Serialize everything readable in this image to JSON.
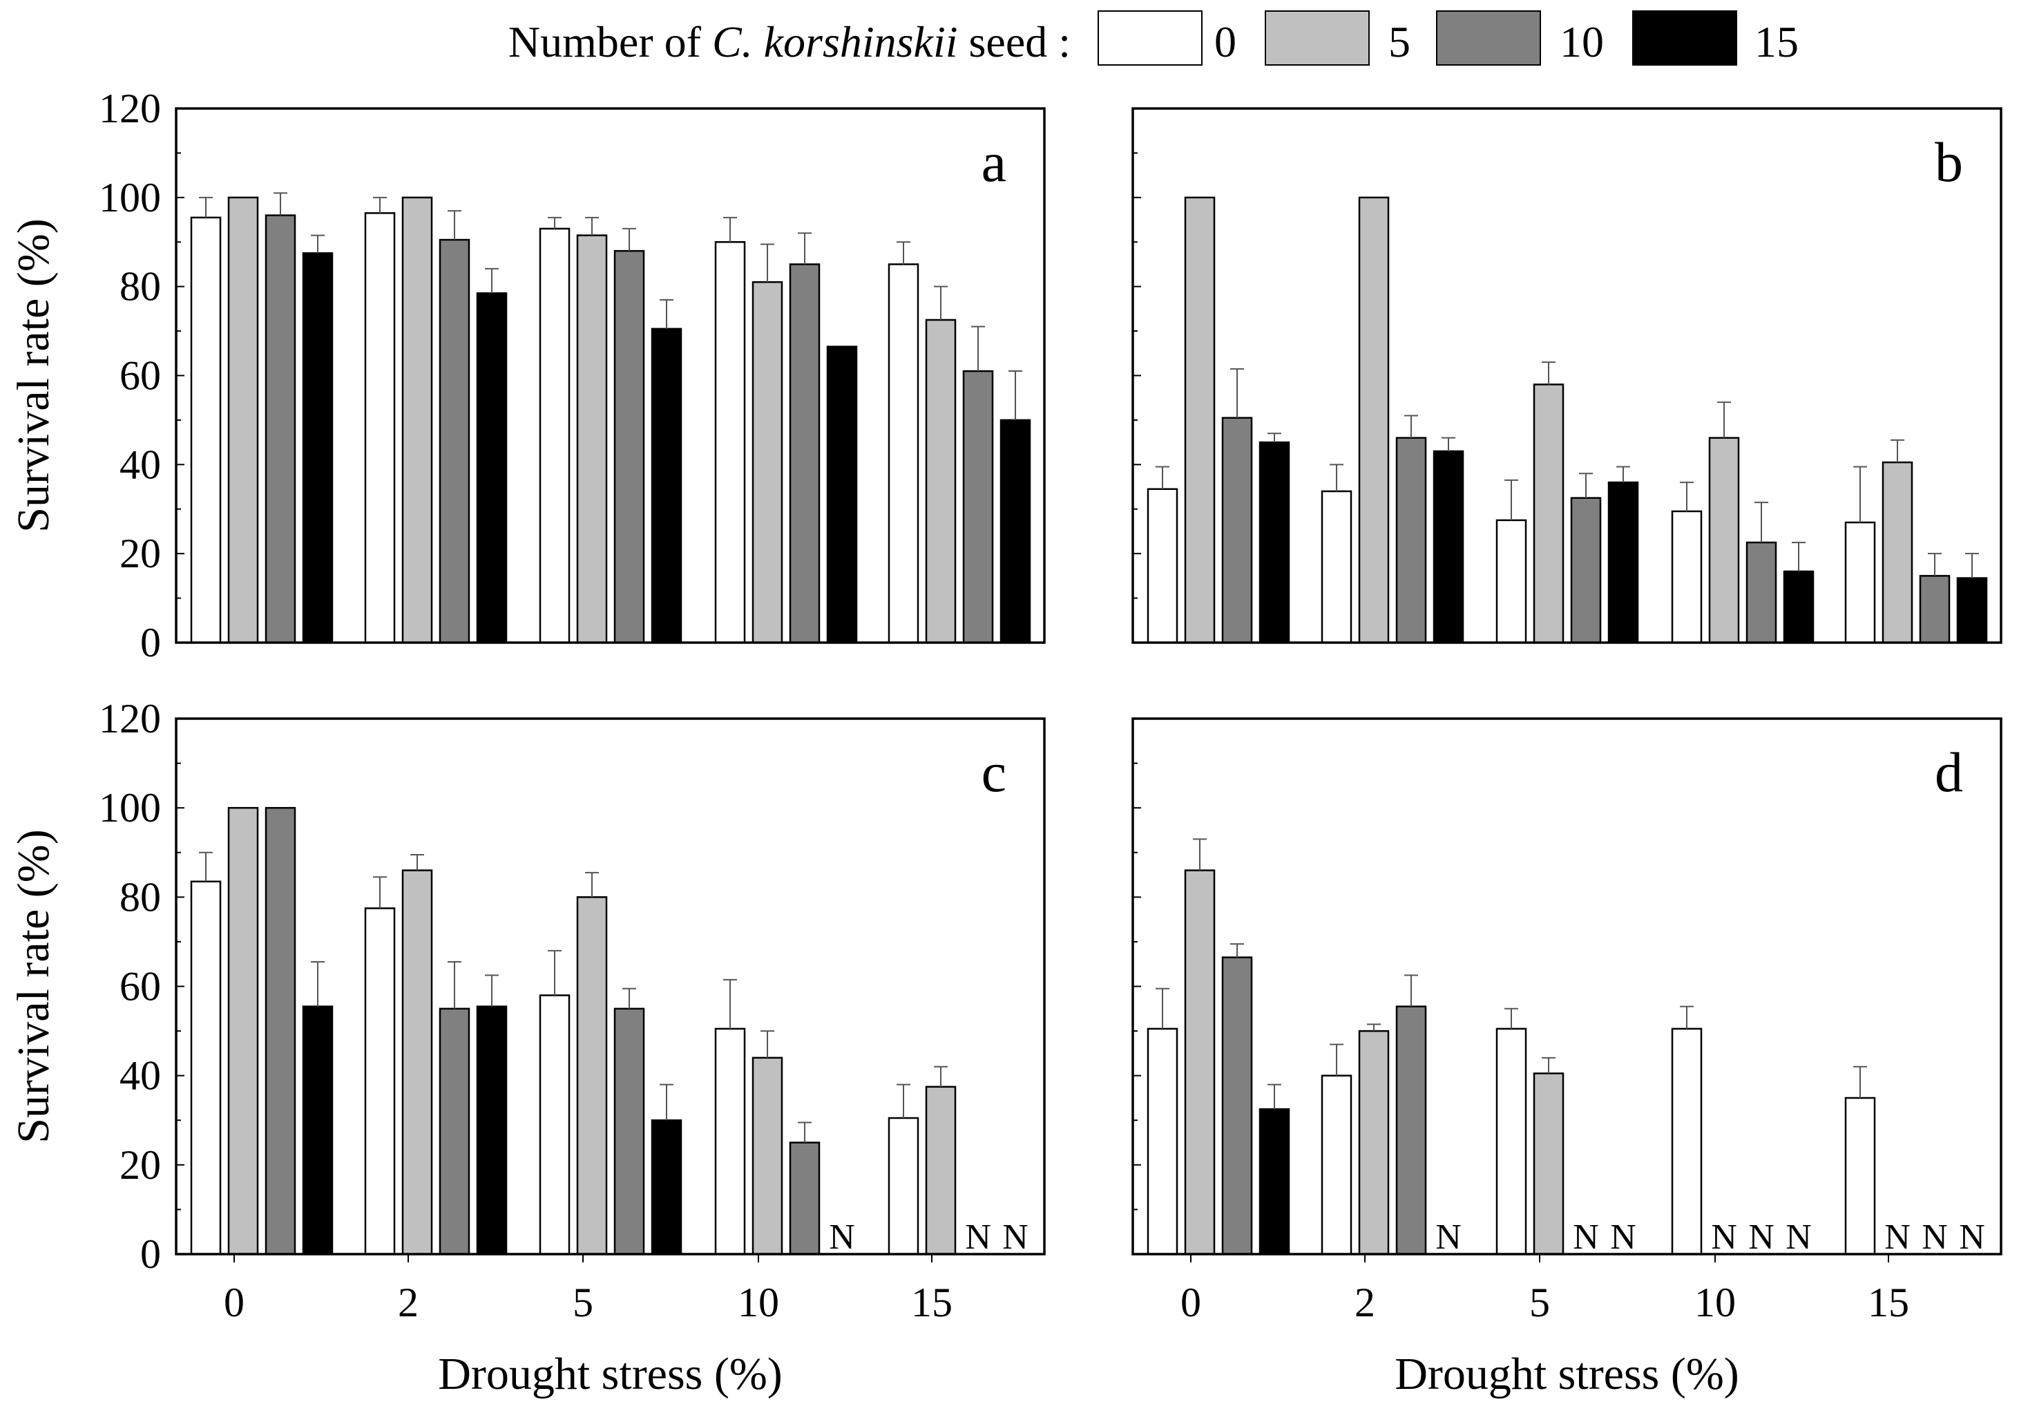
{
  "legend": {
    "title_prefix": "Number of ",
    "title_italic": "C. korshinskii",
    "title_suffix": " seed :",
    "entries": [
      {
        "label": "0",
        "color": "#ffffff"
      },
      {
        "label": "5",
        "color": "#c0c0c0"
      },
      {
        "label": "10",
        "color": "#808080"
      },
      {
        "label": "15",
        "color": "#000000"
      }
    ]
  },
  "not_survived_label": "N",
  "chart_data": [
    {
      "type": "bar",
      "panel": "a",
      "title": "",
      "xlabel": "",
      "ylabel": "Survival rate (%)",
      "ylim": [
        0,
        120
      ],
      "yticks": [
        "0",
        "20",
        "40",
        "60",
        "80",
        "100",
        "120"
      ],
      "categories": [
        "0",
        "2",
        "5",
        "10",
        "15"
      ],
      "series": [
        {
          "name": "0",
          "values": [
            95.5,
            96.5,
            93,
            90,
            85
          ],
          "errors": [
            4.5,
            3.5,
            2.5,
            5.5,
            5
          ]
        },
        {
          "name": "5",
          "values": [
            100,
            100,
            91.5,
            81,
            72.5
          ],
          "errors": [
            0,
            0,
            4,
            8.5,
            7.5
          ]
        },
        {
          "name": "10",
          "values": [
            96,
            90.5,
            88,
            85,
            61
          ],
          "errors": [
            5,
            6.5,
            5,
            7,
            10
          ]
        },
        {
          "name": "15",
          "values": [
            87.5,
            78.5,
            70.5,
            66.5,
            50
          ],
          "errors": [
            4,
            5.5,
            6.5,
            0,
            11
          ]
        }
      ]
    },
    {
      "type": "bar",
      "panel": "b",
      "title": "",
      "xlabel": "",
      "ylabel": "",
      "ylim": [
        0,
        120
      ],
      "yticks": [],
      "categories": [
        "0",
        "2",
        "5",
        "10",
        "15"
      ],
      "series": [
        {
          "name": "0",
          "values": [
            34.5,
            34,
            27.5,
            29.5,
            27
          ],
          "errors": [
            5,
            6,
            9,
            6.5,
            12.5
          ]
        },
        {
          "name": "5",
          "values": [
            100,
            100,
            58,
            46,
            40.5
          ],
          "errors": [
            0,
            0,
            5,
            8,
            5
          ]
        },
        {
          "name": "10",
          "values": [
            50.5,
            46,
            32.5,
            22.5,
            15
          ],
          "errors": [
            11,
            5,
            5.5,
            9,
            5
          ]
        },
        {
          "name": "15",
          "values": [
            45,
            43,
            36,
            16,
            14.5
          ],
          "errors": [
            2,
            3,
            3.5,
            6.5,
            5.5
          ]
        }
      ]
    },
    {
      "type": "bar",
      "panel": "c",
      "title": "",
      "xlabel": "Drought stress (%)",
      "ylabel": "Survival rate (%)",
      "ylim": [
        0,
        120
      ],
      "yticks": [
        "0",
        "20",
        "40",
        "60",
        "80",
        "100",
        "120"
      ],
      "categories": [
        "0",
        "2",
        "5",
        "10",
        "15"
      ],
      "series": [
        {
          "name": "0",
          "values": [
            83.5,
            77.5,
            58,
            50.5,
            30.5
          ],
          "errors": [
            6.5,
            7,
            10,
            11,
            7.5
          ]
        },
        {
          "name": "5",
          "values": [
            100,
            86,
            80,
            44,
            37.5
          ],
          "errors": [
            0,
            3.5,
            5.5,
            6,
            4.5
          ]
        },
        {
          "name": "10",
          "values": [
            100,
            55,
            55,
            25,
            null
          ],
          "errors": [
            0,
            10.5,
            4.5,
            4.5,
            null
          ]
        },
        {
          "name": "15",
          "values": [
            55.5,
            55.5,
            30,
            null,
            null
          ],
          "errors": [
            10,
            7,
            8,
            null,
            null
          ]
        }
      ]
    },
    {
      "type": "bar",
      "panel": "d",
      "title": "",
      "xlabel": "Drought stress (%)",
      "ylabel": "",
      "ylim": [
        0,
        120
      ],
      "yticks": [],
      "categories": [
        "0",
        "2",
        "5",
        "10",
        "15"
      ],
      "series": [
        {
          "name": "0",
          "values": [
            50.5,
            40,
            50.5,
            50.5,
            35
          ],
          "errors": [
            9,
            7,
            4.5,
            5,
            7
          ]
        },
        {
          "name": "5",
          "values": [
            86,
            50,
            40.5,
            null,
            null
          ],
          "errors": [
            7,
            1.5,
            3.5,
            null,
            null
          ]
        },
        {
          "name": "10",
          "values": [
            66.5,
            55.5,
            null,
            null,
            null
          ],
          "errors": [
            3,
            7,
            null,
            null,
            null
          ]
        },
        {
          "name": "15",
          "values": [
            32.5,
            null,
            null,
            null,
            null
          ],
          "errors": [
            5.5,
            null,
            null,
            null,
            null
          ]
        }
      ]
    }
  ]
}
